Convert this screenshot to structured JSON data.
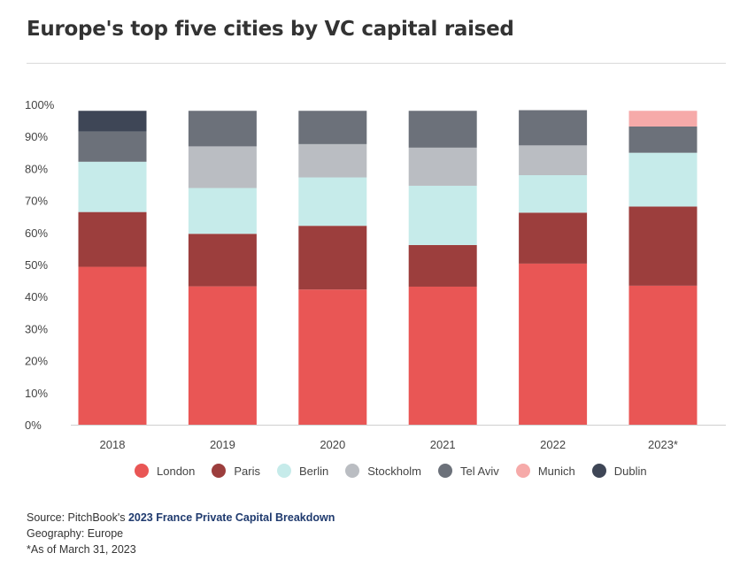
{
  "title": "Europe's top five cities by VC capital raised",
  "colors": {
    "London": "#e95655",
    "Paris": "#9c3e3d",
    "Berlin": "#c6ebea",
    "Stockholm": "#babdc2",
    "Tel Aviv": "#6c717a",
    "Munich": "#f6aaa9",
    "Dublin": "#3e4656"
  },
  "chart_data": {
    "type": "bar",
    "stacked": true,
    "categories": [
      "2018",
      "2019",
      "2020",
      "2021",
      "2022",
      "2023*"
    ],
    "y_ticks": [
      "0%",
      "10%",
      "20%",
      "30%",
      "40%",
      "50%",
      "60%",
      "70%",
      "80%",
      "90%",
      "100%"
    ],
    "ylim": [
      0,
      100
    ],
    "series": [
      {
        "name": "London",
        "values": [
          49.3,
          43.2,
          42.2,
          43.1,
          50.3,
          43.4
        ]
      },
      {
        "name": "Paris",
        "values": [
          17.1,
          16.4,
          19.9,
          13.0,
          15.9,
          24.7
        ]
      },
      {
        "name": "Berlin",
        "values": [
          15.7,
          14.3,
          15.1,
          18.5,
          11.7,
          16.8
        ]
      },
      {
        "name": "Stockholm",
        "values": [
          0,
          13.0,
          10.4,
          11.9,
          9.3,
          0
        ]
      },
      {
        "name": "Tel Aviv",
        "values": [
          9.4,
          11.1,
          10.4,
          11.5,
          11.0,
          8.2
        ]
      },
      {
        "name": "Munich",
        "values": [
          0,
          0,
          0,
          0,
          0,
          4.9
        ]
      },
      {
        "name": "Dublin",
        "values": [
          6.5,
          0,
          0,
          0,
          0,
          0
        ]
      }
    ]
  },
  "legend": [
    "London",
    "Paris",
    "Berlin",
    "Stockholm",
    "Tel Aviv",
    "Munich",
    "Dublin"
  ],
  "footer": {
    "source_prefix": "Source: PitchBook's ",
    "source_link": "2023 France Private Capital Breakdown",
    "geography": "Geography: Europe",
    "note": "*As of March 31, 2023"
  }
}
